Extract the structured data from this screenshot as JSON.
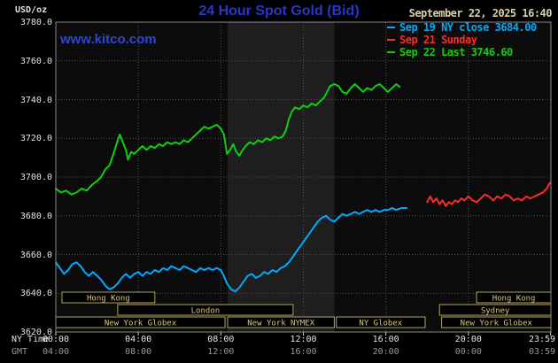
{
  "header": {
    "unit": "USD/oz",
    "title": "24 Hour Spot Gold (Bid)",
    "datetime": "September 22, 2025 16:40",
    "watermark": "www.kitco.com"
  },
  "colors": {
    "title_blue": "#2737d2",
    "kitco_blue": "#2e46d8",
    "date_tan": "#d8cfa8",
    "axis_white": "#e2e2e2",
    "gmt_gray": "#989898",
    "grid_gray": "#4e4e4e",
    "plot_border": "#8a8a8a",
    "plot_bg": "#0c0c0c",
    "band_bg": "#1e1e1e",
    "session_border": "#b3a45c",
    "session_text": "#d9c97c",
    "tick_mark": "#cccccc"
  },
  "sessions": [
    {
      "label": "Hong Kong",
      "row": 0,
      "start_h": 0.3,
      "end_h": 4.8
    },
    {
      "label": "Hong Kong",
      "row": 0,
      "start_h": 20.4,
      "end_h": 24
    },
    {
      "label": "London",
      "row": 1,
      "start_h": 3.0,
      "end_h": 11.5
    },
    {
      "label": "Sydney",
      "row": 1,
      "start_h": 18.6,
      "end_h": 24
    },
    {
      "label": "New York Globex",
      "row": 2,
      "start_h": 0,
      "end_h": 8.2
    },
    {
      "label": "New York NYMEX",
      "row": 2,
      "start_h": 8.33,
      "end_h": 13.5
    },
    {
      "label": "NY Globex",
      "row": 2,
      "start_h": 13.6,
      "end_h": 17.9
    },
    {
      "label": "New York Globex",
      "row": 2,
      "start_h": 18.7,
      "end_h": 24
    }
  ],
  "chart_data": {
    "type": "line",
    "title": "24 Hour Spot Gold (Bid)",
    "ylabel": "USD/oz",
    "ylim": [
      3620,
      3780
    ],
    "ytick_step": 20,
    "x_range_hours": [
      0,
      24
    ],
    "grid": "dotted",
    "legend_position": "top-right",
    "nymex_band_hours": [
      8.33,
      13.5
    ],
    "y_tick_labels": [
      "3780.0",
      "3760.0",
      "3740.0",
      "3720.0",
      "3700.0",
      "3680.0",
      "3660.0",
      "3640.0",
      "3620.0"
    ],
    "x_tick_hours": [
      0,
      4,
      8,
      12,
      16,
      20,
      23.983
    ],
    "x_tick_labels_ny": [
      "00:00",
      "04:00",
      "08:00",
      "12:00",
      "16:00",
      "20:00",
      "23:59"
    ],
    "x_tick_labels_gmt": [
      "04:00",
      "08:00",
      "12:00",
      "16:00",
      "20:00",
      "00:00",
      "03:59"
    ],
    "x_axis_row_labels": {
      "ny": "NY Time",
      "gmt": "GMT"
    },
    "series": [
      {
        "name": "Sep 19 NY close 3684.00",
        "color": "#00aaff",
        "points": [
          [
            0,
            3656
          ],
          [
            0.2,
            3653
          ],
          [
            0.4,
            3650
          ],
          [
            0.6,
            3652
          ],
          [
            0.8,
            3655
          ],
          [
            1,
            3656
          ],
          [
            1.2,
            3654
          ],
          [
            1.4,
            3651
          ],
          [
            1.6,
            3649
          ],
          [
            1.8,
            3651
          ],
          [
            2,
            3649
          ],
          [
            2.2,
            3647
          ],
          [
            2.4,
            3644
          ],
          [
            2.6,
            3642
          ],
          [
            2.8,
            3643
          ],
          [
            3,
            3645
          ],
          [
            3.2,
            3648
          ],
          [
            3.4,
            3650
          ],
          [
            3.6,
            3648
          ],
          [
            3.8,
            3650
          ],
          [
            4,
            3651
          ],
          [
            4.2,
            3649
          ],
          [
            4.4,
            3651
          ],
          [
            4.6,
            3650
          ],
          [
            4.8,
            3652
          ],
          [
            5,
            3651
          ],
          [
            5.2,
            3653
          ],
          [
            5.4,
            3652
          ],
          [
            5.6,
            3654
          ],
          [
            5.8,
            3653
          ],
          [
            6,
            3652
          ],
          [
            6.2,
            3654
          ],
          [
            6.4,
            3653
          ],
          [
            6.6,
            3652
          ],
          [
            6.8,
            3651
          ],
          [
            7,
            3653
          ],
          [
            7.2,
            3652
          ],
          [
            7.4,
            3653
          ],
          [
            7.6,
            3652
          ],
          [
            7.8,
            3653
          ],
          [
            8,
            3652
          ],
          [
            8.15,
            3649
          ],
          [
            8.3,
            3645
          ],
          [
            8.5,
            3642
          ],
          [
            8.7,
            3641
          ],
          [
            8.9,
            3643
          ],
          [
            9.1,
            3646
          ],
          [
            9.3,
            3649
          ],
          [
            9.5,
            3650
          ],
          [
            9.7,
            3648
          ],
          [
            9.9,
            3649
          ],
          [
            10.1,
            3651
          ],
          [
            10.3,
            3650
          ],
          [
            10.5,
            3652
          ],
          [
            10.7,
            3651
          ],
          [
            10.9,
            3653
          ],
          [
            11.1,
            3654
          ],
          [
            11.3,
            3656
          ],
          [
            11.5,
            3659
          ],
          [
            11.7,
            3662
          ],
          [
            11.9,
            3665
          ],
          [
            12.1,
            3668
          ],
          [
            12.3,
            3671
          ],
          [
            12.5,
            3674
          ],
          [
            12.7,
            3677
          ],
          [
            12.9,
            3679
          ],
          [
            13.1,
            3680
          ],
          [
            13.3,
            3678
          ],
          [
            13.5,
            3677
          ],
          [
            13.7,
            3679
          ],
          [
            13.9,
            3681
          ],
          [
            14.1,
            3680
          ],
          [
            14.3,
            3681
          ],
          [
            14.5,
            3682
          ],
          [
            14.7,
            3681
          ],
          [
            14.9,
            3682
          ],
          [
            15.1,
            3683
          ],
          [
            15.3,
            3682
          ],
          [
            15.5,
            3683
          ],
          [
            15.7,
            3682
          ],
          [
            15.9,
            3683
          ],
          [
            16.1,
            3683
          ],
          [
            16.3,
            3684
          ],
          [
            16.5,
            3683
          ],
          [
            16.75,
            3684
          ],
          [
            17,
            3684
          ]
        ]
      },
      {
        "name": "Sep 21 Sunday",
        "color": "#ff2a2a",
        "points": [
          [
            18,
            3687
          ],
          [
            18.15,
            3690
          ],
          [
            18.3,
            3687
          ],
          [
            18.45,
            3689
          ],
          [
            18.6,
            3686
          ],
          [
            18.75,
            3688
          ],
          [
            18.9,
            3685
          ],
          [
            19.05,
            3687
          ],
          [
            19.2,
            3686
          ],
          [
            19.35,
            3688
          ],
          [
            19.5,
            3687
          ],
          [
            19.65,
            3689
          ],
          [
            19.8,
            3688
          ],
          [
            20,
            3690
          ],
          [
            20.2,
            3688
          ],
          [
            20.4,
            3687
          ],
          [
            20.6,
            3689
          ],
          [
            20.8,
            3691
          ],
          [
            21,
            3690
          ],
          [
            21.2,
            3688
          ],
          [
            21.4,
            3690
          ],
          [
            21.6,
            3689
          ],
          [
            21.8,
            3691
          ],
          [
            22,
            3690
          ],
          [
            22.2,
            3688
          ],
          [
            22.4,
            3689
          ],
          [
            22.6,
            3688
          ],
          [
            22.8,
            3690
          ],
          [
            23,
            3689
          ],
          [
            23.2,
            3690
          ],
          [
            23.4,
            3691
          ],
          [
            23.6,
            3692
          ],
          [
            23.8,
            3694
          ],
          [
            23.95,
            3697
          ]
        ]
      },
      {
        "name": "Sep 22 Last 3746.60",
        "color": "#0fcf0f",
        "points": [
          [
            0,
            3694
          ],
          [
            0.25,
            3692
          ],
          [
            0.5,
            3693
          ],
          [
            0.75,
            3691
          ],
          [
            1,
            3692
          ],
          [
            1.25,
            3694
          ],
          [
            1.5,
            3693
          ],
          [
            1.75,
            3696
          ],
          [
            2,
            3698
          ],
          [
            2.2,
            3700
          ],
          [
            2.4,
            3704
          ],
          [
            2.6,
            3706
          ],
          [
            2.8,
            3712
          ],
          [
            3,
            3719
          ],
          [
            3.1,
            3722
          ],
          [
            3.25,
            3718
          ],
          [
            3.4,
            3714
          ],
          [
            3.5,
            3709
          ],
          [
            3.65,
            3713
          ],
          [
            3.8,
            3712
          ],
          [
            4,
            3714
          ],
          [
            4.2,
            3716
          ],
          [
            4.4,
            3714
          ],
          [
            4.6,
            3716
          ],
          [
            4.8,
            3715
          ],
          [
            5,
            3717
          ],
          [
            5.2,
            3716
          ],
          [
            5.4,
            3718
          ],
          [
            5.6,
            3717
          ],
          [
            5.8,
            3718
          ],
          [
            6,
            3717
          ],
          [
            6.2,
            3719
          ],
          [
            6.4,
            3718
          ],
          [
            6.6,
            3720
          ],
          [
            6.8,
            3722
          ],
          [
            7,
            3724
          ],
          [
            7.2,
            3726
          ],
          [
            7.4,
            3725
          ],
          [
            7.6,
            3726
          ],
          [
            7.8,
            3727
          ],
          [
            8,
            3725
          ],
          [
            8.15,
            3722
          ],
          [
            8.3,
            3712
          ],
          [
            8.45,
            3714
          ],
          [
            8.6,
            3717
          ],
          [
            8.75,
            3713
          ],
          [
            8.9,
            3711
          ],
          [
            9,
            3713
          ],
          [
            9.2,
            3716
          ],
          [
            9.4,
            3718
          ],
          [
            9.6,
            3717
          ],
          [
            9.8,
            3719
          ],
          [
            10,
            3718
          ],
          [
            10.2,
            3720
          ],
          [
            10.4,
            3719
          ],
          [
            10.6,
            3721
          ],
          [
            10.8,
            3720
          ],
          [
            11,
            3721
          ],
          [
            11.15,
            3724
          ],
          [
            11.3,
            3730
          ],
          [
            11.45,
            3734
          ],
          [
            11.6,
            3736
          ],
          [
            11.8,
            3735
          ],
          [
            12,
            3737
          ],
          [
            12.2,
            3736
          ],
          [
            12.4,
            3738
          ],
          [
            12.6,
            3737
          ],
          [
            12.8,
            3739
          ],
          [
            13,
            3741
          ],
          [
            13.15,
            3744
          ],
          [
            13.3,
            3747
          ],
          [
            13.5,
            3748
          ],
          [
            13.7,
            3747
          ],
          [
            13.9,
            3744
          ],
          [
            14.1,
            3743
          ],
          [
            14.3,
            3746
          ],
          [
            14.5,
            3748
          ],
          [
            14.7,
            3746
          ],
          [
            14.9,
            3744
          ],
          [
            15.1,
            3746
          ],
          [
            15.3,
            3745
          ],
          [
            15.5,
            3747
          ],
          [
            15.7,
            3748
          ],
          [
            15.9,
            3746
          ],
          [
            16.1,
            3744
          ],
          [
            16.3,
            3746
          ],
          [
            16.5,
            3748
          ],
          [
            16.67,
            3746.6
          ]
        ]
      }
    ]
  }
}
